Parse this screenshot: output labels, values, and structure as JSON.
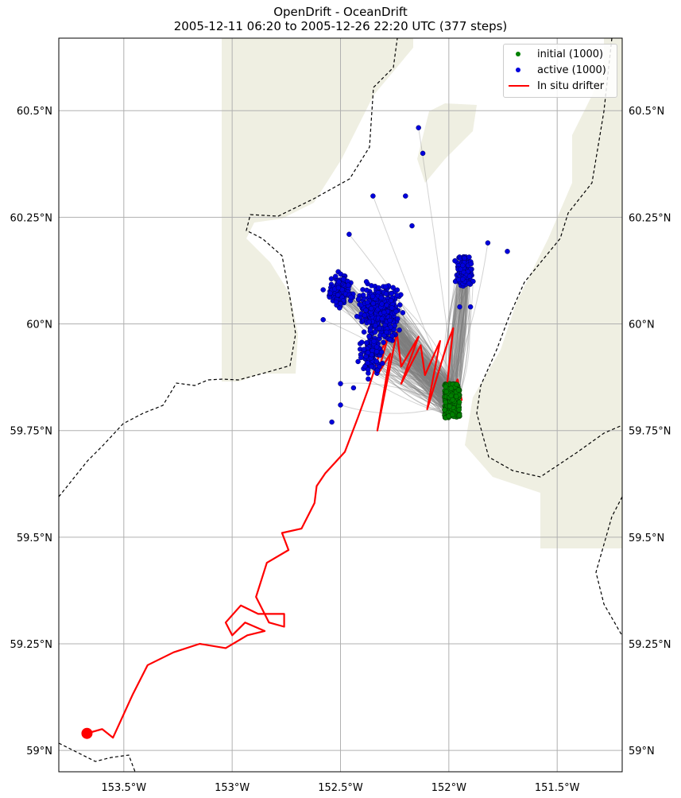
{
  "title": {
    "line1": "OpenDrift - OceanDrift",
    "line2": "2005-12-11 06:20 to 2005-12-26 22:20 UTC (377 steps)"
  },
  "colors": {
    "land": "#efefe2",
    "grid": "#b0b0b0",
    "trajectory": "#7f7f7f",
    "initial": "#008000",
    "active": "#0000dd",
    "drifter": "#ff0000",
    "border": "#000000"
  },
  "axes": {
    "lon_range": [
      -153.8,
      -151.2
    ],
    "lat_range": [
      58.95,
      60.67
    ],
    "lon_ticks": [
      {
        "value": -153.5,
        "label": "153.5°W"
      },
      {
        "value": -153.0,
        "label": "153°W"
      },
      {
        "value": -152.5,
        "label": "152.5°W"
      },
      {
        "value": -152.0,
        "label": "152°W"
      },
      {
        "value": -151.5,
        "label": "151.5°W"
      }
    ],
    "lat_ticks": [
      {
        "value": 60.5,
        "label": "60.5°N"
      },
      {
        "value": 60.25,
        "label": "60.25°N"
      },
      {
        "value": 60.0,
        "label": "60°N"
      },
      {
        "value": 59.75,
        "label": "59.75°N"
      },
      {
        "value": 59.5,
        "label": "59.5°N"
      },
      {
        "value": 59.25,
        "label": "59.25°N"
      },
      {
        "value": 59.0,
        "label": "59°N"
      }
    ],
    "grid": true
  },
  "legend": {
    "placement": "top-right",
    "items": [
      {
        "label": "initial (1000)",
        "kind": "dot",
        "color": "#008000"
      },
      {
        "label": "active (1000)",
        "kind": "dot",
        "color": "#0000dd"
      },
      {
        "label": "In situ drifter",
        "kind": "line",
        "color": "#ff0000"
      }
    ]
  },
  "chart_data": {
    "type": "scatter",
    "initial_count": 1000,
    "active_count": 1000,
    "steps": 377,
    "initial_region": {
      "lon": [
        -152.02,
        -151.95
      ],
      "lat": [
        59.78,
        59.86
      ]
    },
    "drifter_track": [
      [
        -153.67,
        59.04
      ],
      [
        -153.6,
        59.05
      ],
      [
        -153.55,
        59.03
      ],
      [
        -153.46,
        59.13
      ],
      [
        -153.39,
        59.2
      ],
      [
        -153.27,
        59.23
      ],
      [
        -153.15,
        59.25
      ],
      [
        -153.03,
        59.24
      ],
      [
        -152.93,
        59.27
      ],
      [
        -152.85,
        59.28
      ],
      [
        -152.94,
        59.3
      ],
      [
        -153.0,
        59.27
      ],
      [
        -153.03,
        59.3
      ],
      [
        -152.96,
        59.34
      ],
      [
        -152.88,
        59.32
      ],
      [
        -152.76,
        59.32
      ],
      [
        -152.76,
        59.29
      ],
      [
        -152.83,
        59.3
      ],
      [
        -152.89,
        59.36
      ],
      [
        -152.84,
        59.44
      ],
      [
        -152.74,
        59.47
      ],
      [
        -152.77,
        59.51
      ],
      [
        -152.68,
        59.52
      ],
      [
        -152.62,
        59.58
      ],
      [
        -152.61,
        59.62
      ],
      [
        -152.57,
        59.65
      ],
      [
        -152.48,
        59.7
      ],
      [
        -152.42,
        59.78
      ],
      [
        -152.37,
        59.85
      ],
      [
        -152.32,
        59.93
      ],
      [
        -152.28,
        59.97
      ],
      [
        -152.33,
        59.88
      ],
      [
        -152.27,
        59.93
      ],
      [
        -152.33,
        59.75
      ],
      [
        -152.24,
        59.98
      ],
      [
        -152.22,
        59.9
      ],
      [
        -152.14,
        59.97
      ],
      [
        -152.22,
        59.86
      ],
      [
        -152.13,
        59.95
      ],
      [
        -152.11,
        59.88
      ],
      [
        -152.04,
        59.96
      ],
      [
        -152.1,
        59.8
      ],
      [
        -152.01,
        59.95
      ],
      [
        -151.98,
        59.99
      ],
      [
        -152.02,
        59.8
      ],
      [
        -151.96,
        59.87
      ],
      [
        -151.94,
        59.82
      ]
    ],
    "drifter_start": [
      -153.67,
      59.04
    ],
    "active_cluster_centers": [
      {
        "lon": -152.32,
        "lat": 60.03,
        "spread": [
          0.12,
          0.08
        ],
        "n": 420
      },
      {
        "lon": -151.93,
        "lat": 60.12,
        "spread": [
          0.05,
          0.05
        ],
        "n": 180
      },
      {
        "lon": -152.5,
        "lat": 60.08,
        "spread": [
          0.07,
          0.05
        ],
        "n": 120
      },
      {
        "lon": -152.36,
        "lat": 59.93,
        "spread": [
          0.07,
          0.07
        ],
        "n": 120
      }
    ],
    "active_outliers": [
      [
        -152.14,
        60.46
      ],
      [
        -152.12,
        60.4
      ],
      [
        -152.35,
        60.3
      ],
      [
        -152.2,
        60.3
      ],
      [
        -152.46,
        60.21
      ],
      [
        -152.17,
        60.23
      ],
      [
        -151.82,
        60.19
      ],
      [
        -151.73,
        60.17
      ],
      [
        -152.5,
        59.81
      ],
      [
        -152.54,
        59.77
      ],
      [
        -152.5,
        59.86
      ],
      [
        -152.44,
        59.85
      ],
      [
        -151.9,
        60.04
      ],
      [
        -151.95,
        60.04
      ],
      [
        -152.58,
        60.01
      ],
      [
        -152.58,
        60.08
      ]
    ]
  }
}
